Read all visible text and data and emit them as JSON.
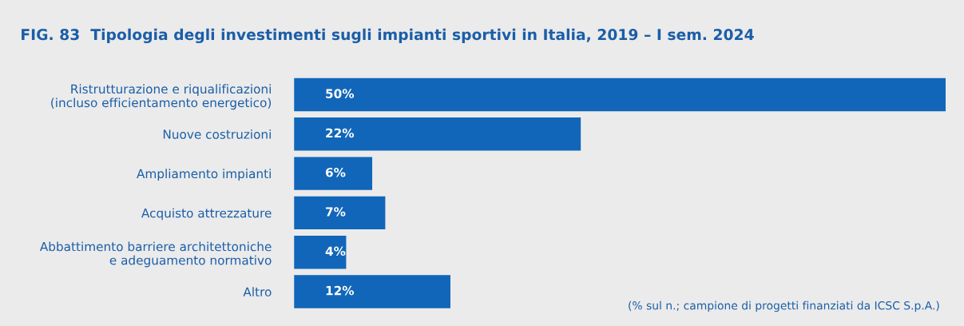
{
  "chart_data": {
    "type": "bar",
    "orientation": "horizontal",
    "title": "FIG. 83  Tipologia degli investimenti sugli impianti sportivi in Italia, 2019 – I sem. 2024",
    "categories": [
      "Ristrutturazione e riqualificazioni\n(incluso efficientamento energetico)",
      "Nuove costruzioni",
      "Ampliamento impianti",
      "Acquisto attrezzature",
      "Abbattimento barriere architettoniche\ne adeguamento normativo",
      "Altro"
    ],
    "values": [
      50,
      22,
      6,
      7,
      4,
      12
    ],
    "color": "#1166b9",
    "data_labels": true,
    "value_labels": [
      "50%",
      "22%",
      "6%",
      "7%",
      "4%",
      "12%"
    ],
    "annotations": [
      "(% sul n.; campione di progetti finanziati da ICSC S.p.A.)"
    ],
    "grid": false,
    "legend": false
  }
}
